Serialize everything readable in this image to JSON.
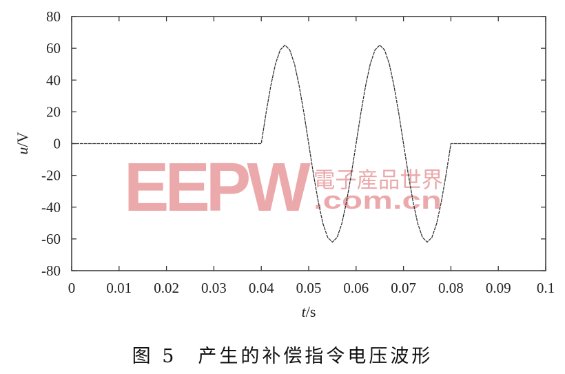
{
  "chart_data": {
    "type": "line",
    "title": "",
    "xlabel_var": "t",
    "xlabel_unit": "/s",
    "ylabel_var": "u",
    "ylabel_unit": "/V",
    "xlim": [
      0,
      0.1
    ],
    "ylim": [
      -80,
      80
    ],
    "xticks": [
      "0",
      "0.01",
      "0.02",
      "0.03",
      "0.04",
      "0.05",
      "0.06",
      "0.07",
      "0.08",
      "0.09",
      "0.1"
    ],
    "yticks": [
      "80",
      "60",
      "40",
      "20",
      "0",
      "-20",
      "-40",
      "-60",
      "-80"
    ],
    "grid": false,
    "line_color": "#333333",
    "series": [
      {
        "x": [
          0,
          0.04,
          0.041,
          0.042,
          0.043,
          0.044,
          0.045,
          0.046,
          0.047,
          0.048,
          0.049,
          0.05,
          0.051,
          0.052,
          0.053,
          0.054,
          0.055,
          0.056,
          0.057,
          0.058,
          0.059,
          0.06,
          0.061,
          0.062,
          0.063,
          0.064,
          0.065,
          0.066,
          0.067,
          0.068,
          0.069,
          0.07,
          0.071,
          0.072,
          0.073,
          0.074,
          0.075,
          0.076,
          0.077,
          0.078,
          0.079,
          0.08,
          0.1
        ],
        "y": [
          0,
          0,
          19.2,
          36.4,
          50.2,
          59.0,
          62,
          59.0,
          50.2,
          36.4,
          19.2,
          0,
          -19.2,
          -36.4,
          -50.2,
          -59.0,
          -62,
          -59.0,
          -50.2,
          -36.4,
          -19.2,
          0,
          19.2,
          36.4,
          50.2,
          59.0,
          62,
          59.0,
          50.2,
          36.4,
          19.2,
          0,
          -19.2,
          -36.4,
          -50.2,
          -59.0,
          -62,
          -59.0,
          -50.2,
          -36.4,
          -19.2,
          0,
          0
        ]
      }
    ]
  },
  "watermark": {
    "logo": "EEPW",
    "cn": "電子産品世界",
    "domain": ".com.cn",
    "color": "#e9a0a3"
  },
  "caption": "图 5　产生的补偿指令电压波形"
}
